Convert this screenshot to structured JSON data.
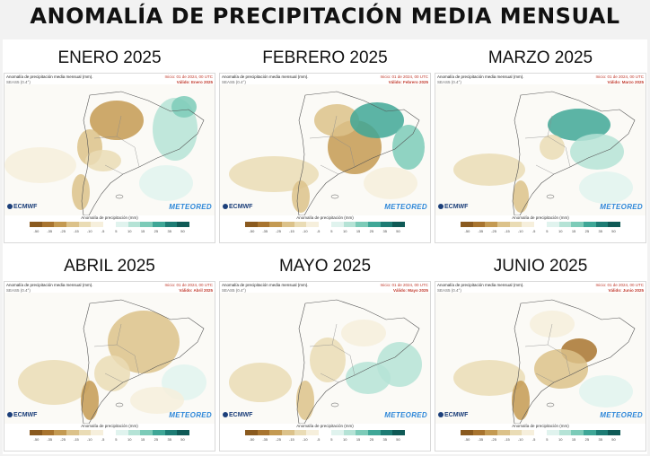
{
  "title": "ANOMALÍA DE PRECIPITACIÓN MEDIA MENSUAL",
  "panel_header": {
    "product": "Anomalía de precipitación media mensual (mm).",
    "source": "SEAS5 (0.4°)",
    "init": "Inicio: 01 de 2024, 00 UTC"
  },
  "colorbar_label": "Anomalía de precipitación (mm)",
  "colorbar_ticks": [
    "-50",
    "-35",
    "-25",
    "-15",
    "-10",
    "-5",
    "5",
    "10",
    "15",
    "25",
    "35",
    "50"
  ],
  "colorbar_colors": [
    "#8a5a1f",
    "#a8742f",
    "#c49a52",
    "#dcc28a",
    "#eadcb5",
    "#f6efdc",
    "#ffffff",
    "#e0f3ee",
    "#b5e3d6",
    "#7ccbb8",
    "#3fa797",
    "#1d7c74",
    "#0f5a56"
  ],
  "logos": {
    "left": "ECMWF",
    "right": "METEORED"
  },
  "panels": [
    {
      "month": "ENERO 2025",
      "valid": "Válido: Enero 2025"
    },
    {
      "month": "FEBRERO 2025",
      "valid": "Válido: Febrero 2025"
    },
    {
      "month": "MARZO 2025",
      "valid": "Válido: Marzo 2025"
    },
    {
      "month": "ABRIL 2025",
      "valid": "Válido: Abril 2025"
    },
    {
      "month": "MAYO 2025",
      "valid": "Válido: Mayo 2025"
    },
    {
      "month": "JUNIO 2025",
      "valid": "Válido: Junio 2025"
    }
  ]
}
